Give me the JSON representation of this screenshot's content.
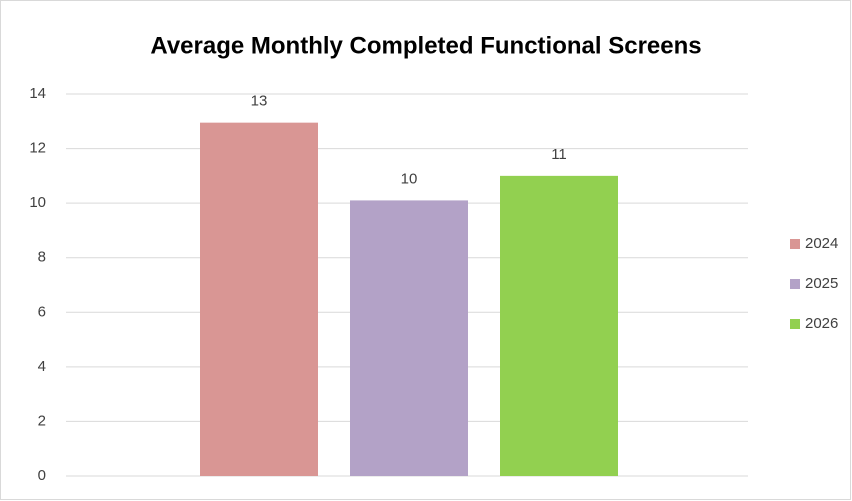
{
  "chart_data": {
    "type": "bar",
    "title": "Average Monthly Completed Functional Screens",
    "series": [
      {
        "name": "2024",
        "color": "#d99694",
        "values": [
          12.95
        ],
        "value_labels": [
          "13"
        ]
      },
      {
        "name": "2025",
        "color": "#b3a2c7",
        "values": [
          10.1
        ],
        "value_labels": [
          "10"
        ]
      },
      {
        "name": "2026",
        "color": "#92d050",
        "values": [
          11
        ],
        "value_labels": [
          "11"
        ]
      }
    ],
    "ylim": [
      0,
      14
    ],
    "yticks": [
      0,
      2,
      4,
      6,
      8,
      10,
      12,
      14
    ],
    "grid": true,
    "legend": "right"
  }
}
